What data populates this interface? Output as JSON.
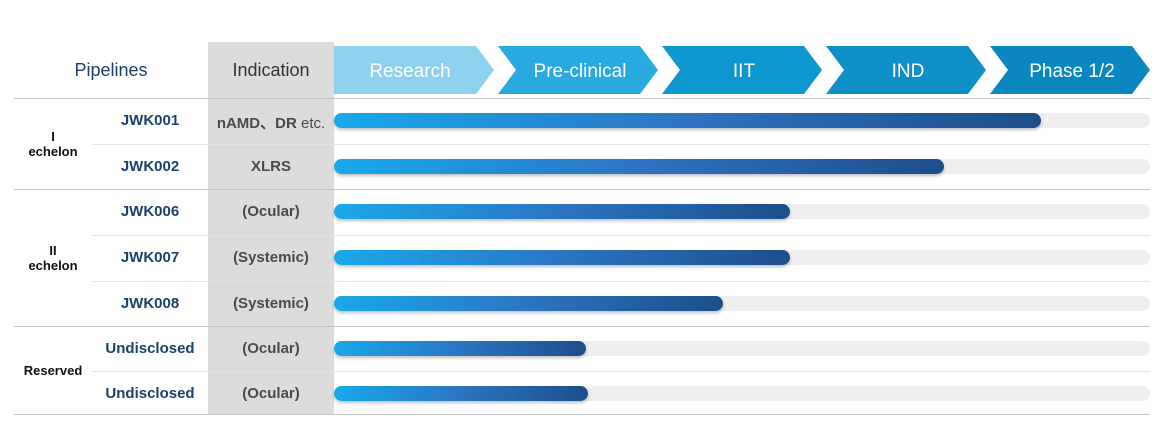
{
  "header": {
    "pipelines": "Pipelines",
    "indication": "Indication"
  },
  "stages": [
    {
      "label": "Research",
      "color": "#8fd1ec"
    },
    {
      "label": "Pre-clinical",
      "color": "#2aaae0"
    },
    {
      "label": "IIT",
      "color": "#0e96cf"
    },
    {
      "label": "IND",
      "color": "#0f8fc8"
    },
    {
      "label": "Phase 1/2",
      "color": "#0a87c1"
    }
  ],
  "groups": [
    {
      "label": [
        "I",
        "echelon"
      ]
    },
    {
      "label": [
        "II",
        "echelon"
      ]
    },
    {
      "label": [
        "Reserved"
      ]
    }
  ],
  "rows": [
    {
      "name": "JWK001",
      "indication": "nAMD、DR",
      "indication_suffix": " etc.",
      "progress": 0.867
    },
    {
      "name": "JWK002",
      "indication": "XLRS",
      "progress": 0.747
    },
    {
      "name": "JWK006",
      "indication": "(Ocular)",
      "progress": 0.559
    },
    {
      "name": "JWK007",
      "indication": "(Systemic)",
      "progress": 0.559
    },
    {
      "name": "JWK008",
      "indication": "(Systemic)",
      "progress": 0.477
    },
    {
      "name": "Undisclosed",
      "indication": "(Ocular)",
      "progress": 0.309
    },
    {
      "name": "Undisclosed",
      "indication": "(Ocular)",
      "progress": 0.311
    }
  ],
  "chart_data": {
    "type": "bar",
    "orientation": "horizontal",
    "x_categories": [
      "Research",
      "Pre-clinical",
      "IIT",
      "IND",
      "Phase 1/2"
    ],
    "categories": [
      "JWK001",
      "JWK002",
      "JWK006",
      "JWK007",
      "JWK008",
      "Undisclosed",
      "Undisclosed"
    ],
    "values": [
      0.867,
      0.747,
      0.559,
      0.559,
      0.477,
      0.309,
      0.311
    ],
    "value_unit": "fraction of full pipeline (Research → Phase 1/2)",
    "xlim": [
      0,
      1
    ]
  }
}
